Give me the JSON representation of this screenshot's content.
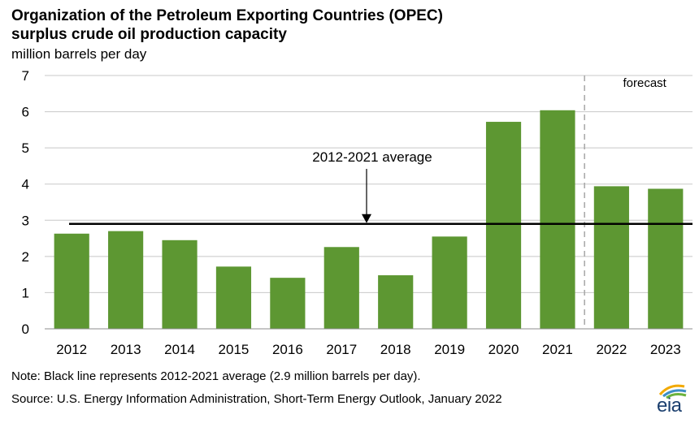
{
  "header": {
    "title_line1": "Organization of the Petroleum Exporting Countries (OPEC)",
    "title_line2": "surplus crude oil production capacity",
    "unit": "million  barrels per day"
  },
  "chart_data": {
    "type": "bar",
    "title": "Organization of the Petroleum Exporting Countries (OPEC) surplus crude oil production capacity",
    "ylabel": "million barrels per day",
    "xlabel": "",
    "categories": [
      "2012",
      "2013",
      "2014",
      "2015",
      "2016",
      "2017",
      "2018",
      "2019",
      "2020",
      "2021",
      "2022",
      "2023"
    ],
    "values": [
      2.63,
      2.7,
      2.45,
      1.72,
      1.41,
      2.26,
      1.48,
      2.55,
      5.72,
      6.04,
      3.94,
      3.87
    ],
    "ylim": [
      0,
      7
    ],
    "yticks": [
      "0",
      "1",
      "2",
      "3",
      "4",
      "5",
      "6",
      "7"
    ],
    "grid": true,
    "bar_color": "#5d9732",
    "average": {
      "value": 2.9,
      "label": "2012-2021 average"
    },
    "forecast": {
      "label": "forecast",
      "starts_at": "2022"
    }
  },
  "footer": {
    "note": "Note: Black line represents 2012-2021 average (2.9 million barrels per day).",
    "source": "Source: U.S. Energy Information Administration,  Short-Term Energy Outlook, January 2022",
    "logo_text": "eia"
  }
}
